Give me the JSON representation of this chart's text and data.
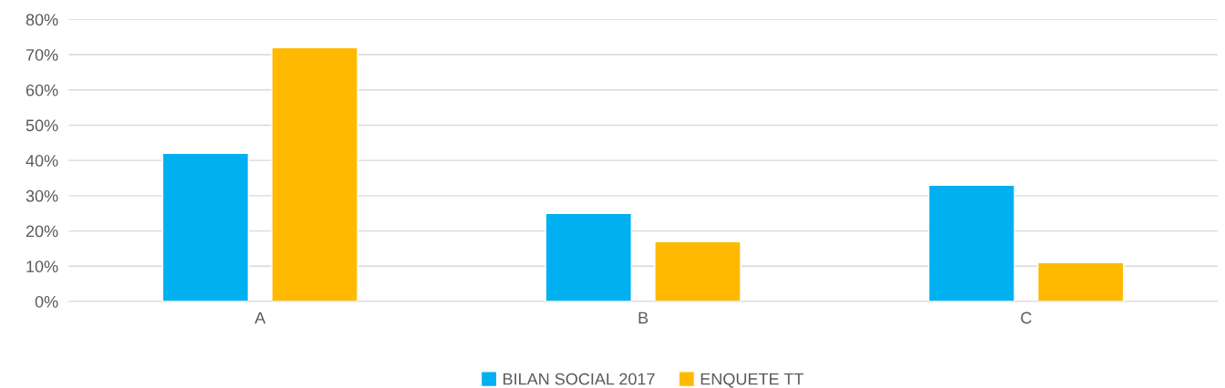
{
  "chart_data": {
    "type": "bar",
    "categories": [
      "A",
      "B",
      "C"
    ],
    "series": [
      {
        "name": "BILAN SOCIAL 2017",
        "color": "#00b0f0",
        "values": [
          42,
          25,
          33
        ]
      },
      {
        "name": "ENQUETE TT",
        "color": "#ffb900",
        "values": [
          72,
          17,
          11
        ]
      }
    ],
    "ylim": [
      0,
      80
    ],
    "yticks": [
      {
        "value": 0,
        "label": "0%"
      },
      {
        "value": 10,
        "label": "10%"
      },
      {
        "value": 20,
        "label": "20%"
      },
      {
        "value": 30,
        "label": "30%"
      },
      {
        "value": 40,
        "label": "40%"
      },
      {
        "value": 50,
        "label": "50%"
      },
      {
        "value": 60,
        "label": "60%"
      },
      {
        "value": 70,
        "label": "70%"
      },
      {
        "value": 80,
        "label": "80%"
      }
    ],
    "grid": "y",
    "legend": "bottom"
  }
}
